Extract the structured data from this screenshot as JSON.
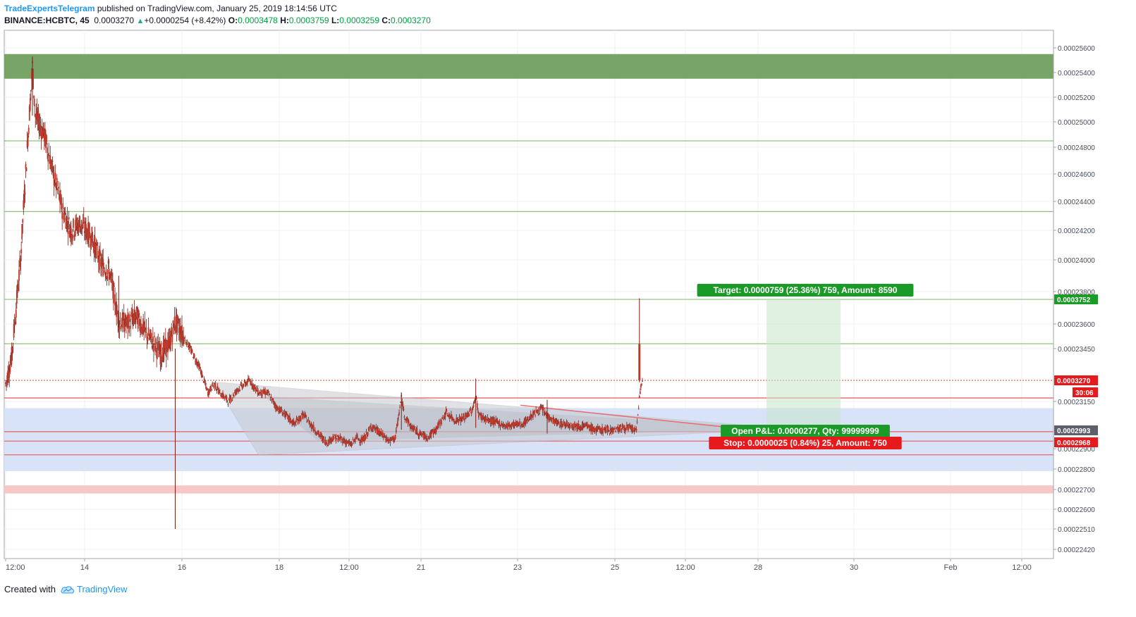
{
  "header": {
    "author": "TradeExpertsTelegram",
    "published": "published on TradingView.com, January 25, 2019 18:14:56 UTC",
    "symbol": "BINANCE:HCBTC, 45",
    "last": "0.0003270",
    "change_arrow": "▲",
    "change": "+0.0000254 (+8.42%)",
    "o_label": "O:",
    "o_value": "0.0003478",
    "h_label": "H:",
    "h_value": "0.0003759",
    "l_label": "L:",
    "l_value": "0.0003259",
    "c_label": "C:",
    "c_value": "0.0003270"
  },
  "footer": {
    "created": "Created with",
    "brand": "TradingView",
    "logo_icon": "tradingview-cloud-icon"
  },
  "colors": {
    "up": "#26a69a",
    "candle": "#c0392b",
    "candle_dark": "#7a1e14",
    "green_zone": "#6a9a56",
    "blue_zone": "#d6e2f8",
    "pink_zone": "#f7c6c6",
    "target": "#1a9b28",
    "stop": "#e6191c",
    "gray_label": "#5d606b"
  },
  "chart_data": {
    "type": "candlestick",
    "title": "",
    "symbol": "BINANCE:HCBTC",
    "interval": "45",
    "y_ticks": [
      "0.00025600",
      "0.00025400",
      "0.00025200",
      "0.00025000",
      "0.00024800",
      "0.00024600",
      "0.00024400",
      "0.00024200",
      "0.00024000",
      "0.00023800",
      "0.00023600",
      "0.00023450",
      "0.00023150",
      "0.00022900",
      "0.00022800",
      "0.00022700",
      "0.00022600",
      "0.00022510",
      "0.00022420"
    ],
    "x_ticks": [
      "12:00",
      "14",
      "16",
      "18",
      "12:00",
      "21",
      "23",
      "25",
      "12:00",
      "28",
      "30",
      "Feb",
      "12:00"
    ],
    "price_path": [
      [
        0,
        0.000325
      ],
      [
        2,
        0.00034
      ],
      [
        5,
        0.0004
      ],
      [
        7,
        0.00047
      ],
      [
        9,
        0.000545
      ],
      [
        10,
        0.000505
      ],
      [
        13,
        0.00049
      ],
      [
        16,
        0.00046
      ],
      [
        19,
        0.000435
      ],
      [
        22,
        0.00042
      ],
      [
        25,
        0.000425
      ],
      [
        29,
        0.000415
      ],
      [
        32,
        0.000398
      ],
      [
        35,
        0.000392
      ],
      [
        38,
        0.000362
      ],
      [
        41,
        0.00036
      ],
      [
        44,
        0.000365
      ],
      [
        47,
        0.000355
      ],
      [
        50,
        0.000348
      ],
      [
        52,
        0.000342
      ],
      [
        55,
        0.000348
      ],
      [
        57,
        0.000362
      ],
      [
        59,
        0.000355
      ],
      [
        62,
        0.000345
      ],
      [
        65,
        0.000335
      ],
      [
        68,
        0.00032
      ],
      [
        70,
        0.000325
      ],
      [
        72,
        0.00032
      ],
      [
        75,
        0.000315
      ],
      [
        78,
        0.000322
      ],
      [
        82,
        0.000327
      ],
      [
        85,
        0.00032
      ],
      [
        88,
        0.00032
      ],
      [
        91,
        0.000312
      ],
      [
        94,
        0.000308
      ],
      [
        97,
        0.000303
      ],
      [
        100,
        0.000308
      ],
      [
        102,
        0.000304
      ],
      [
        105,
        0.000298
      ],
      [
        108,
        0.000293
      ],
      [
        110,
        0.000296
      ],
      [
        113,
        0.000295
      ],
      [
        116,
        0.000292
      ],
      [
        118,
        0.000296
      ],
      [
        120,
        0.000294
      ],
      [
        123,
        0.000302
      ],
      [
        126,
        0.000298
      ],
      [
        129,
        0.000294
      ],
      [
        131,
        0.000296
      ],
      [
        133,
        0.000317
      ],
      [
        134,
        0.000308
      ],
      [
        136,
        0.000302
      ],
      [
        139,
        0.000298
      ],
      [
        142,
        0.000296
      ],
      [
        145,
        0.000301
      ],
      [
        148,
        0.000309
      ],
      [
        151,
        0.000305
      ],
      [
        154,
        0.000306
      ],
      [
        157,
        0.000311
      ],
      [
        158,
        0.000318
      ],
      [
        159,
        0.000308
      ],
      [
        162,
        0.000305
      ],
      [
        165,
        0.000304
      ],
      [
        168,
        0.000302
      ],
      [
        171,
        0.000303
      ],
      [
        174,
        0.000303
      ],
      [
        177,
        0.000308
      ],
      [
        180,
        0.000311
      ],
      [
        183,
        0.000306
      ],
      [
        186,
        0.000303
      ],
      [
        189,
        0.000303
      ],
      [
        192,
        0.000302
      ],
      [
        195,
        0.000302
      ],
      [
        198,
        0.0003
      ],
      [
        201,
        0.0003
      ],
      [
        204,
        0.0003
      ],
      [
        207,
        0.000301
      ],
      [
        210,
        0.000301
      ],
      [
        212,
        0.000299
      ],
      [
        213,
        0.000318
      ],
      [
        214,
        0.000327
      ]
    ],
    "wicks": [
      [
        9,
        0.000553,
        0.000505
      ],
      [
        38,
        0.00039,
        0.000358
      ],
      [
        57,
        0.000345,
        0.000251
      ],
      [
        133,
        0.00032,
        0.0003
      ],
      [
        158,
        0.000328,
        0.000301
      ],
      [
        213,
        0.0003759,
        0.0003259
      ],
      [
        182,
        0.000316,
        0.000298
      ]
    ],
    "levels": {
      "green_zone": [
        0.000535,
        0.000555
      ],
      "green_lines": [
        0.000485,
        0.000433,
        0.0003752,
        0.000348
      ],
      "red_lines": [
        0.000317,
        0.000299,
        0.000294,
        0.000287
      ],
      "last_price_line": 0.000327,
      "blue_zone": [
        0.000279,
        0.0003115
      ],
      "pink_zone": [
        0.000268,
        0.000272
      ]
    },
    "position": {
      "target_label": "Target: 0.0000759 (25.36%) 759, Amount: 8590",
      "pnl_label": "Open P&L: 0.0000277, Qty: 99999999",
      "stop_label": "Stop: 0.0000025 (0.84%) 25, Amount: 750",
      "target_price": "0.0003752",
      "entry_price": "0.0002993",
      "stop_price": "0.0002968"
    },
    "price_labels": {
      "last": "0.0003270",
      "countdown": "30:06",
      "entry": "0.0002993",
      "target": "0.0003752",
      "stop": "0.0002968"
    }
  }
}
